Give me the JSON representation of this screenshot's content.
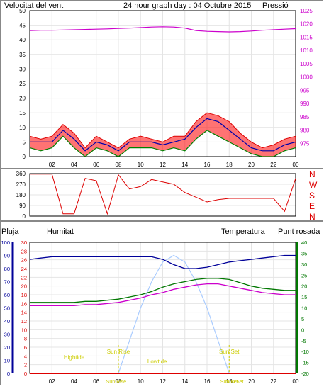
{
  "colors": {
    "wind": "#dd0000",
    "gust_fill": "#ff0000",
    "pressure": "#cc00cc",
    "green": "#008000",
    "blue": "#0000aa",
    "humidity": "#000099",
    "temperature": "#007700",
    "dewpoint": "#cc00cc",
    "sun_elevation": "#aaccff",
    "rain": "#dd0000",
    "annotation": "#cccc00",
    "title": "#0000aa"
  },
  "chart_data": [
    {
      "type": "line",
      "title": "24 hour graph day : 04 Octubre 2015",
      "left_axis_label": "Velocitat del vent",
      "right_axis_label": "Pressió",
      "x_ticks": [
        "02",
        "04",
        "06",
        "08",
        "10",
        "12",
        "14",
        "16",
        "18",
        "20",
        "22",
        "00"
      ],
      "ylim_left": [
        0,
        50
      ],
      "y_ticks_left": [
        0,
        5,
        10,
        15,
        20,
        25,
        30,
        35,
        40,
        45,
        50
      ],
      "ylim_right": [
        970,
        1025
      ],
      "y_ticks_right": [
        975,
        980,
        985,
        990,
        995,
        1000,
        1005,
        1010,
        1015,
        1020,
        1025
      ],
      "x": [
        0,
        1,
        2,
        3,
        4,
        5,
        6,
        7,
        8,
        9,
        10,
        11,
        12,
        13,
        14,
        15,
        16,
        17,
        18,
        19,
        20,
        21,
        22,
        23,
        24
      ],
      "series": [
        {
          "key": "gust",
          "values": [
            7,
            6,
            7,
            11,
            8,
            3,
            7,
            5,
            3,
            6,
            7,
            6,
            5,
            7,
            7,
            12,
            15,
            14,
            12,
            8,
            5,
            3,
            4,
            6,
            7
          ]
        },
        {
          "key": "wind",
          "values": [
            5,
            5,
            5,
            9,
            6,
            2,
            5,
            4,
            2,
            5,
            5,
            5,
            4,
            5,
            6,
            10,
            13,
            12,
            9,
            6,
            3,
            2,
            2,
            4,
            5
          ]
        },
        {
          "key": "wind_low",
          "values": [
            3,
            2,
            3,
            7,
            3,
            0,
            3,
            2,
            0,
            3,
            3,
            3,
            2,
            3,
            2,
            6,
            9,
            7,
            5,
            3,
            1,
            0,
            0,
            2,
            3
          ]
        },
        {
          "key": "pressure",
          "values": [
            1017.5,
            1017.6,
            1017.6,
            1017.7,
            1017.8,
            1017.9,
            1018.0,
            1018.1,
            1018.3,
            1018.4,
            1018.6,
            1018.8,
            1018.9,
            1018.8,
            1018.4,
            1017.5,
            1017.2,
            1017.1,
            1017.0,
            1017.1,
            1017.3,
            1017.6,
            1017.8,
            1018.0,
            1018.2
          ]
        }
      ]
    },
    {
      "type": "line",
      "y_ticks": [
        0,
        90,
        180,
        270,
        360
      ],
      "ylim": [
        0,
        360
      ],
      "compass_labels": [
        "N",
        "W",
        "S",
        "E",
        "N"
      ],
      "x": [
        0,
        1,
        2,
        3,
        4,
        5,
        6,
        7,
        8,
        9,
        10,
        11,
        12,
        13,
        14,
        15,
        16,
        17,
        18,
        19,
        20,
        21,
        22,
        23,
        24
      ],
      "series": [
        {
          "key": "direction",
          "values": [
            355,
            355,
            355,
            20,
            20,
            320,
            300,
            20,
            350,
            230,
            250,
            310,
            290,
            270,
            200,
            160,
            120,
            140,
            150,
            150,
            150,
            150,
            150,
            40,
            320
          ]
        }
      ]
    },
    {
      "type": "line",
      "left_axis_label_1": "Pluja",
      "left_axis_label_2": "Humitat",
      "right_axis_label_1": "Temperatura",
      "right_axis_label_2": "Punt rosada",
      "x_ticks": [
        "02",
        "04",
        "06",
        "08",
        "10",
        "12",
        "14",
        "16",
        "18",
        "20",
        "22",
        "00"
      ],
      "ylim_humidity": [
        0,
        100
      ],
      "y_ticks_humidity": [
        0,
        10,
        20,
        30,
        40,
        50,
        60,
        70,
        80,
        90,
        100
      ],
      "ylim_rain": [
        0,
        30
      ],
      "y_ticks_rain": [
        0,
        2,
        4,
        6,
        8,
        10,
        12,
        14,
        16,
        18,
        20,
        22,
        24,
        26,
        28,
        30
      ],
      "ylim_temp": [
        -20,
        40
      ],
      "y_ticks_temp": [
        -20,
        -15,
        -10,
        -5,
        0,
        5,
        10,
        15,
        20,
        25,
        30,
        35,
        40
      ],
      "x": [
        0,
        1,
        2,
        3,
        4,
        5,
        6,
        7,
        8,
        9,
        10,
        11,
        12,
        13,
        14,
        15,
        16,
        17,
        18,
        19,
        20,
        21,
        22,
        23,
        24
      ],
      "series": [
        {
          "key": "humidity",
          "values": [
            87,
            88,
            89,
            89,
            89,
            89,
            89,
            89,
            89,
            89,
            89,
            89,
            87,
            83,
            80,
            80,
            81,
            83,
            85,
            86,
            87,
            88,
            89,
            90,
            90
          ]
        },
        {
          "key": "temperature",
          "values": [
            12.5,
            12.5,
            12.5,
            12.5,
            12.5,
            13,
            13,
            13.5,
            14,
            15,
            16,
            17.5,
            19.5,
            21,
            22,
            23,
            23.5,
            23.5,
            23,
            21.5,
            20,
            19,
            18.5,
            18,
            18
          ]
        },
        {
          "key": "dewpoint",
          "values": [
            11,
            11,
            11,
            11,
            11,
            11.5,
            11.5,
            12,
            12.5,
            13.5,
            14.5,
            16,
            17,
            18.5,
            19.5,
            20.5,
            21,
            21,
            20,
            19,
            18,
            17,
            16.5,
            16,
            16
          ]
        },
        {
          "key": "sun_elevation",
          "values": [
            null,
            null,
            null,
            null,
            null,
            null,
            null,
            null,
            0,
            10,
            20,
            28,
            34,
            36,
            34,
            28,
            20,
            10,
            0,
            null,
            null,
            null,
            null,
            null,
            null
          ]
        },
        {
          "key": "rain",
          "values": [
            0,
            0,
            0,
            0,
            0,
            0,
            0,
            0,
            0,
            0,
            0,
            0,
            0,
            0,
            0,
            0,
            0,
            0,
            0,
            0,
            0,
            0,
            0,
            0,
            0
          ]
        }
      ],
      "annotations": [
        "Sun Rise",
        "Sun Set",
        "Lowtide",
        "Hightide",
        "Sun Set",
        "Sun Rise",
        "Sun Set"
      ]
    }
  ]
}
